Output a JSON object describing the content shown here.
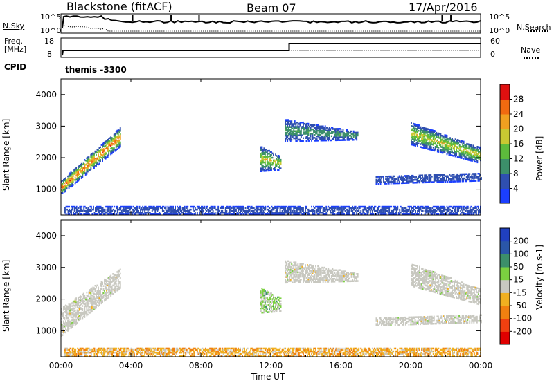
{
  "header": {
    "station": "Blackstone (fitACF)",
    "beam": "Beam 07",
    "date": "17/Apr/2016"
  },
  "top_panel": {
    "nsky_label": "N.Sky",
    "nsearch_label": "N.Search",
    "left_ticks": [
      "10^5",
      "10^0"
    ],
    "right_ticks": [
      "10^5",
      "10^0"
    ],
    "freq_label": "Freq.",
    "freq_unit": "[MHz]",
    "freq_ticks": [
      "18",
      "8"
    ],
    "nave_label": "Nave",
    "nave_ticks": [
      "60",
      "0"
    ],
    "cpid_label": "CPID",
    "cpid_value": "themis -3300"
  },
  "colors": {
    "power_scale": [
      "#1b3fff",
      "#2f4fb0",
      "#3c8f6a",
      "#5dbb3c",
      "#c8c832",
      "#f0a020",
      "#f06a10",
      "#e01010"
    ],
    "velocity_scale": [
      "#2040c0",
      "#2a56a8",
      "#3c8f6a",
      "#7bd040",
      "#c8c8c0",
      "#f0b020",
      "#f08010",
      "#f04010",
      "#e00000"
    ],
    "ground_scatter": "#c8c8c0"
  },
  "chart_data": [
    {
      "type": "heatmap",
      "name": "power",
      "ylabel": "Slant Range [km]",
      "xlabel": "",
      "x_ticks": [
        "00:00",
        "04:00",
        "08:00",
        "12:00",
        "16:00",
        "20:00",
        "00:00"
      ],
      "xlim_hours": [
        0,
        24
      ],
      "ylim": [
        180,
        4500
      ],
      "y_ticks": [
        1000,
        2000,
        3000,
        4000
      ],
      "colorbar": {
        "label": "Power [dB]",
        "ticks": [
          28,
          24,
          20,
          16,
          12,
          8,
          4
        ],
        "range": [
          0,
          30
        ]
      },
      "echo_regions": [
        {
          "t": [
            0.0,
            3.4
          ],
          "r_lo": [
            820,
            2350
          ],
          "r_hi": [
            1250,
            2950
          ],
          "peak": 28
        },
        {
          "t": [
            11.4,
            12.6
          ],
          "r_lo": [
            1550,
            1600
          ],
          "r_hi": [
            2350,
            2000
          ],
          "peak": 20
        },
        {
          "t": [
            12.8,
            17.0
          ],
          "r_lo": [
            2500,
            2550
          ],
          "r_hi": [
            3200,
            2800
          ],
          "peak": 12
        },
        {
          "t": [
            18.0,
            24.0
          ],
          "r_lo": [
            1150,
            1250
          ],
          "r_hi": [
            1400,
            1500
          ],
          "peak": 8
        },
        {
          "t": [
            20.0,
            24.0
          ],
          "r_lo": [
            2400,
            1800
          ],
          "r_hi": [
            3100,
            2300
          ],
          "peak": 20
        },
        {
          "t": [
            0.2,
            24.0
          ],
          "r_lo": [
            200,
            200
          ],
          "r_hi": [
            450,
            450
          ],
          "peak": 6
        }
      ]
    },
    {
      "type": "heatmap",
      "name": "velocity",
      "ylabel": "Slant Range [km]",
      "xlabel": "Time UT",
      "x_ticks": [
        "00:00",
        "04:00",
        "08:00",
        "12:00",
        "16:00",
        "20:00",
        "00:00"
      ],
      "xlim_hours": [
        0,
        24
      ],
      "ylim": [
        180,
        4500
      ],
      "y_ticks": [
        1000,
        2000,
        3000,
        4000
      ],
      "colorbar": {
        "label": "Velocity [m s-1]",
        "ticks": [
          "200",
          "100",
          "50",
          "15",
          "-15",
          "-50",
          "-100",
          "-200"
        ],
        "range": [
          -250,
          250
        ]
      },
      "echo_regions": [
        {
          "t": [
            0.0,
            3.4
          ],
          "r_lo": [
            820,
            2350
          ],
          "r_hi": [
            1700,
            2950
          ],
          "value": 0,
          "ground_scatter": true
        },
        {
          "t": [
            11.4,
            12.6
          ],
          "r_lo": [
            1550,
            1600
          ],
          "r_hi": [
            2350,
            2000
          ],
          "value": 40
        },
        {
          "t": [
            12.8,
            17.0
          ],
          "r_lo": [
            2500,
            2550
          ],
          "r_hi": [
            3200,
            2800
          ],
          "value": 0,
          "ground_scatter": true
        },
        {
          "t": [
            18.0,
            24.0
          ],
          "r_lo": [
            1150,
            1250
          ],
          "r_hi": [
            1400,
            1500
          ],
          "value": 0,
          "ground_scatter": true
        },
        {
          "t": [
            20.0,
            24.0
          ],
          "r_lo": [
            2400,
            1800
          ],
          "r_hi": [
            3100,
            2300
          ],
          "value": 0,
          "ground_scatter": true
        },
        {
          "t": [
            0.2,
            24.0
          ],
          "r_lo": [
            200,
            200
          ],
          "r_hi": [
            450,
            450
          ],
          "value": -60
        }
      ]
    }
  ]
}
